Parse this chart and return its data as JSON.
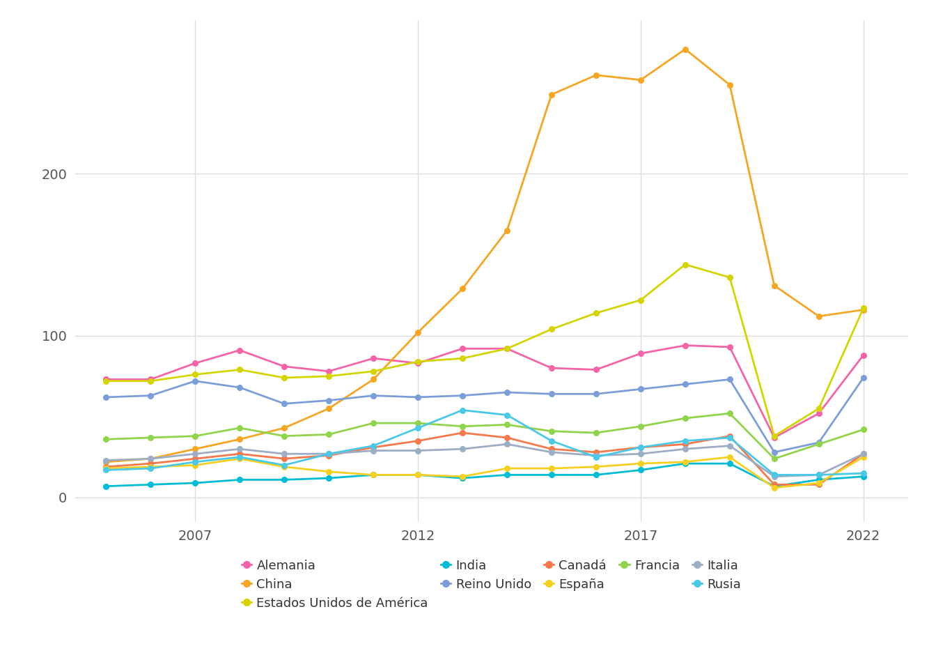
{
  "years": [
    2005,
    2006,
    2007,
    2008,
    2009,
    2010,
    2011,
    2012,
    2013,
    2014,
    2015,
    2016,
    2017,
    2018,
    2019,
    2020,
    2021,
    2022
  ],
  "series": {
    "Alemania": {
      "color": "#F564A9",
      "values": [
        73,
        73,
        83,
        91,
        81,
        78,
        86,
        83,
        92,
        92,
        80,
        79,
        89,
        94,
        93,
        37,
        52,
        88
      ]
    },
    "China": {
      "color": "#F5A623",
      "values": [
        22,
        24,
        30,
        36,
        43,
        55,
        73,
        102,
        129,
        165,
        249,
        261,
        258,
        277,
        255,
        131,
        112,
        116
      ]
    },
    "Estados Unidos de América": {
      "color": "#D4D400",
      "values": [
        72,
        72,
        76,
        79,
        74,
        75,
        78,
        84,
        86,
        92,
        104,
        114,
        122,
        144,
        136,
        38,
        55,
        117
      ]
    },
    "India": {
      "color": "#00BCD4",
      "values": [
        7,
        8,
        9,
        11,
        11,
        12,
        14,
        14,
        12,
        14,
        14,
        14,
        17,
        21,
        21,
        7,
        11,
        13
      ]
    },
    "Reino Unido": {
      "color": "#7B9ED9",
      "values": [
        62,
        63,
        72,
        68,
        58,
        60,
        63,
        62,
        63,
        65,
        64,
        64,
        67,
        70,
        73,
        28,
        34,
        74
      ]
    },
    "Canadá": {
      "color": "#F5794A",
      "values": [
        19,
        21,
        24,
        27,
        24,
        26,
        31,
        35,
        40,
        37,
        30,
        28,
        31,
        33,
        38,
        8,
        8,
        27
      ]
    },
    "España": {
      "color": "#F5D020",
      "values": [
        18,
        19,
        20,
        24,
        19,
        16,
        14,
        14,
        13,
        18,
        18,
        19,
        21,
        22,
        25,
        6,
        9,
        25
      ]
    },
    "Francia": {
      "color": "#90D44B",
      "values": [
        36,
        37,
        38,
        43,
        38,
        39,
        46,
        46,
        44,
        45,
        41,
        40,
        44,
        49,
        52,
        24,
        33,
        42
      ]
    },
    "Italia": {
      "color": "#9DAEC4",
      "values": [
        23,
        24,
        27,
        30,
        27,
        27,
        29,
        29,
        30,
        33,
        28,
        26,
        27,
        30,
        32,
        13,
        14,
        27
      ]
    },
    "Rusia": {
      "color": "#4AC8E8",
      "values": [
        17,
        18,
        22,
        25,
        20,
        27,
        32,
        43,
        54,
        51,
        35,
        25,
        31,
        35,
        37,
        14,
        14,
        15
      ]
    }
  },
  "legend_row1": [
    "Alemania",
    "China",
    "Estados Unidos de América",
    "India",
    "Reino Unido"
  ],
  "legend_row2": [
    "Canadá",
    "España",
    "Francia",
    "Italia",
    "Rusia"
  ],
  "background_color": "#FFFFFF",
  "plot_bg_color": "#FFFFFF",
  "grid_color": "#DEDEDE",
  "ylim": [
    -15,
    295
  ],
  "yticks": [
    0,
    100,
    200
  ],
  "xticks": [
    2007,
    2012,
    2017,
    2022
  ],
  "xlim": [
    2004.3,
    2023.0
  ]
}
